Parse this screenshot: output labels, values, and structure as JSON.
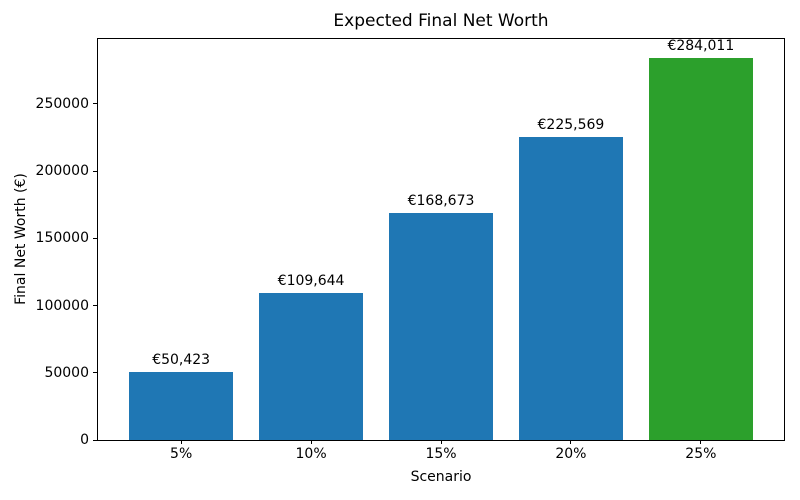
{
  "chart_data": {
    "type": "bar",
    "title": "Expected Final Net Worth",
    "xlabel": "Scenario",
    "ylabel": "Final Net Worth (€)",
    "categories": [
      "5%",
      "10%",
      "15%",
      "20%",
      "25%"
    ],
    "values": [
      50423,
      109644,
      168673,
      225569,
      284011
    ],
    "bar_labels": [
      "€50,423",
      "€109,644",
      "€168,673",
      "€225,569",
      "€284,011"
    ],
    "bar_colors": [
      "#1f77b4",
      "#1f77b4",
      "#1f77b4",
      "#1f77b4",
      "#2ca02c"
    ],
    "yticks": [
      0,
      50000,
      100000,
      150000,
      200000,
      250000
    ],
    "ytick_labels": [
      "0",
      "50000",
      "100000",
      "150000",
      "200000",
      "250000"
    ],
    "ylim": [
      0,
      298212
    ],
    "grid": false,
    "legend_position": "none",
    "colors": {
      "default_bar": "#1f77b4",
      "highlight_bar": "#2ca02c",
      "axis": "#000000",
      "background": "#ffffff"
    }
  }
}
